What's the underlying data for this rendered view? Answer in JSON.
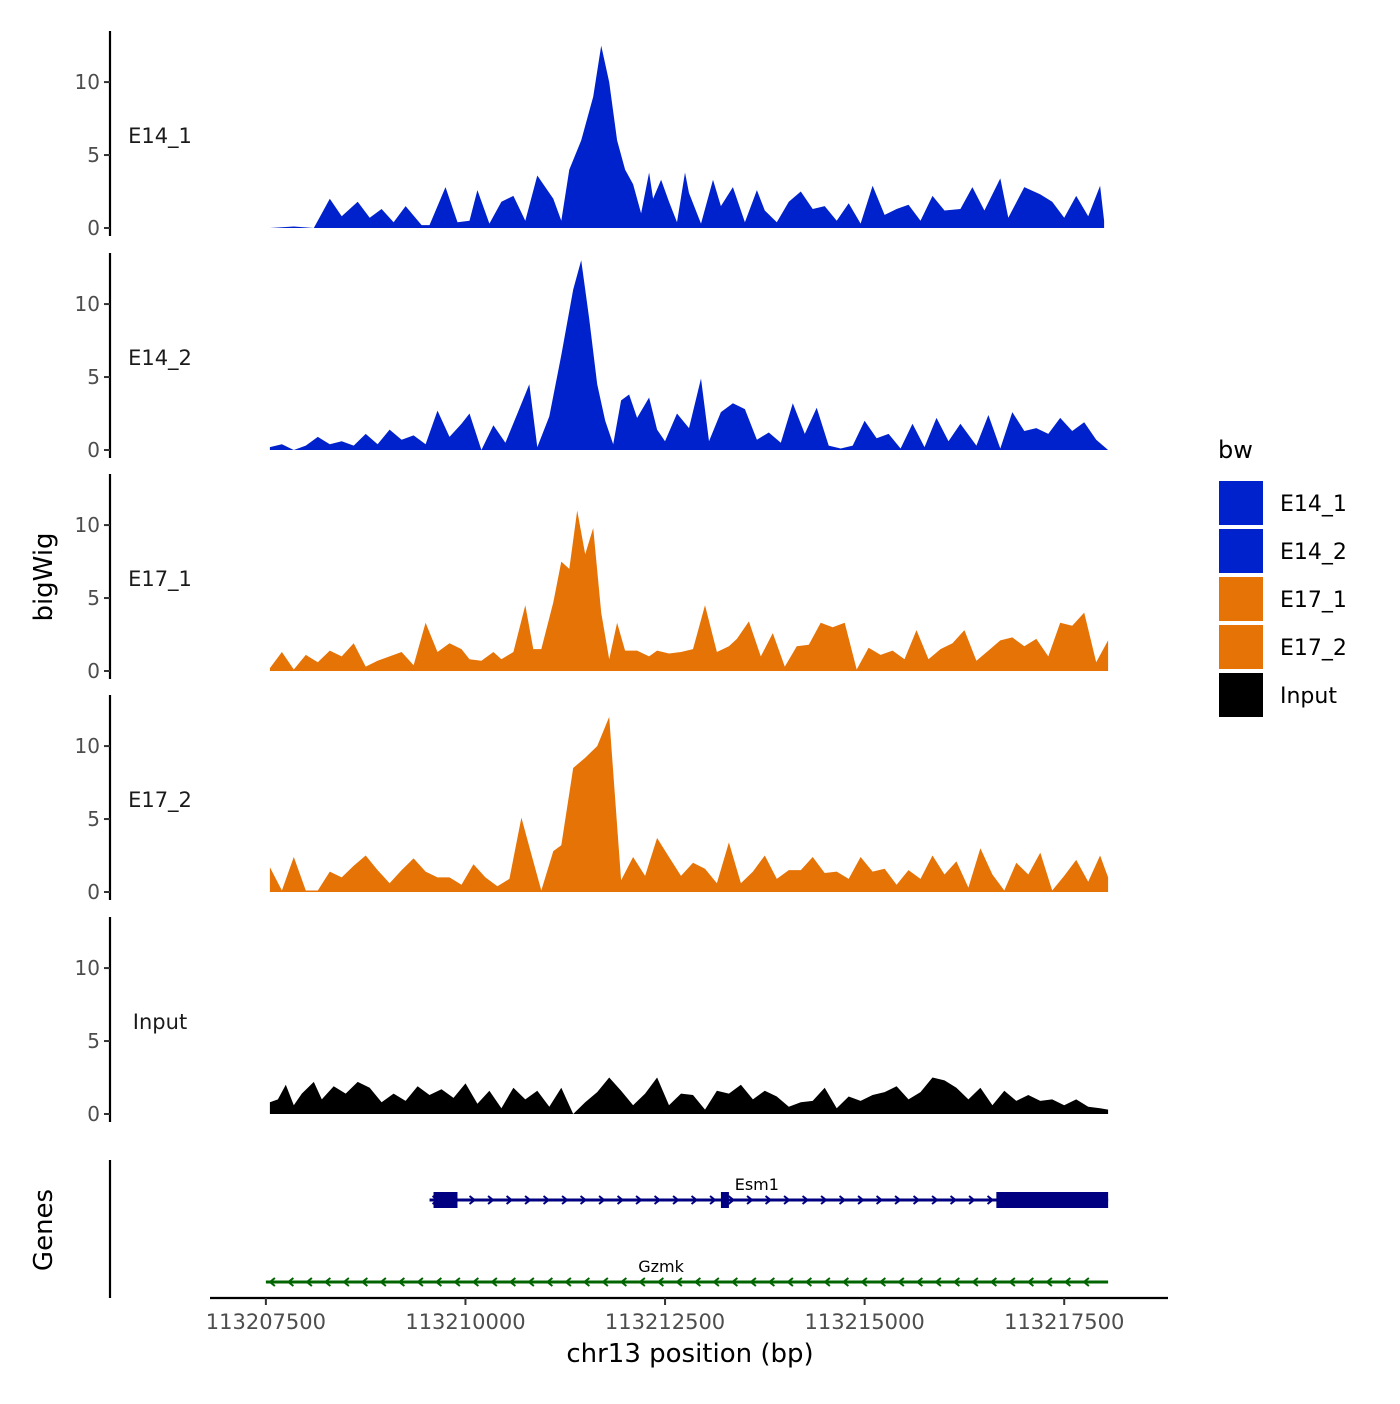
{
  "chart_data": {
    "type": "area",
    "title": "",
    "xlabel": "chr13 position (bp)",
    "ylabel": "bigWig",
    "gene_track_label": "Genes",
    "xlim": [
      113206800,
      113218800
    ],
    "ylim": [
      0,
      13.5
    ],
    "x_ticks": [
      113207500,
      113210000,
      113212500,
      113215000,
      113217500
    ],
    "x_tick_labels": [
      "113207500",
      "113210000",
      "113212500",
      "113215000",
      "113217500"
    ],
    "y_ticks": [
      0,
      5,
      10
    ],
    "y_tick_labels": [
      "0",
      "5",
      "10"
    ],
    "legend": {
      "title": "bw",
      "position": "right",
      "entries": [
        {
          "label": "E14_1",
          "color": "#0022CC"
        },
        {
          "label": "E14_2",
          "color": "#0022CC"
        },
        {
          "label": "E17_1",
          "color": "#E57306"
        },
        {
          "label": "E17_2",
          "color": "#E57306"
        },
        {
          "label": "Input",
          "color": "#000000"
        }
      ]
    },
    "series": [
      {
        "name": "E14_1",
        "color": "#0022CC",
        "x": [
          113207550,
          113207850,
          113208100,
          113208300,
          113208450,
          113208650,
          113208800,
          113208950,
          113209100,
          113209250,
          113209450,
          113209550,
          113209750,
          113209900,
          113210050,
          113210150,
          113210300,
          113210450,
          113210600,
          113210750,
          113210900,
          113211100,
          113211200,
          113211300,
          113211450,
          113211600,
          113211700,
          113211800,
          113211900,
          113212000,
          113212100,
          113212200,
          113212300,
          113212350,
          113212450,
          113212550,
          113212650,
          113212750,
          113212800,
          113212950,
          113213100,
          113213200,
          113213350,
          113213500,
          113213650,
          113213750,
          113213900,
          113214050,
          113214200,
          113214350,
          113214500,
          113214650,
          113214800,
          113214950,
          113215100,
          113215250,
          113215400,
          113215550,
          113215700,
          113215850,
          113216000,
          113216200,
          113216350,
          113216500,
          113216700,
          113216800,
          113217000,
          113217200,
          113217350,
          113217500,
          113217650,
          113217800,
          113217950,
          113218000
        ],
        "values": [
          0,
          0.1,
          0,
          2,
          0.8,
          1.8,
          0.7,
          1.3,
          0.4,
          1.5,
          0.2,
          0.2,
          2.8,
          0.4,
          0.5,
          2.6,
          0.3,
          1.8,
          2.2,
          0.5,
          3.6,
          2,
          0.5,
          4,
          6,
          9,
          12.5,
          10,
          6,
          4,
          3,
          1,
          3.8,
          2,
          3.3,
          1.8,
          0.4,
          3.8,
          2.4,
          0.3,
          3.3,
          1.5,
          2.8,
          0.4,
          2.6,
          1.2,
          0.4,
          1.8,
          2.5,
          1.3,
          1.5,
          0.5,
          1.7,
          0.3,
          2.9,
          0.9,
          1.3,
          1.6,
          0.5,
          2.2,
          1.2,
          1.3,
          2.8,
          1.2,
          3.4,
          0.7,
          2.8,
          2.3,
          1.8,
          0.7,
          2.2,
          0.8,
          2.9,
          0.5
        ]
      },
      {
        "name": "E14_2",
        "color": "#0022CC",
        "x": [
          113207550,
          113207700,
          113207850,
          113208000,
          113208150,
          113208300,
          113208450,
          113208600,
          113208750,
          113208900,
          113209050,
          113209200,
          113209350,
          113209500,
          113209650,
          113209800,
          113209950,
          113210050,
          113210200,
          113210350,
          113210500,
          113210650,
          113210800,
          113210900,
          113211050,
          113211200,
          113211350,
          113211450,
          113211550,
          113211650,
          113211750,
          113211850,
          113211950,
          113212050,
          113212150,
          113212300,
          113212400,
          113212500,
          113212650,
          113212800,
          113212950,
          113213050,
          113213200,
          113213350,
          113213500,
          113213650,
          113213800,
          113213950,
          113214100,
          113214250,
          113214400,
          113214550,
          113214700,
          113214850,
          113215000,
          113215150,
          113215300,
          113215450,
          113215600,
          113215750,
          113215900,
          113216050,
          113216200,
          113216400,
          113216550,
          113216700,
          113216850,
          113217000,
          113217150,
          113217300,
          113217450,
          113217600,
          113217750,
          113217900,
          113218050
        ],
        "values": [
          0.2,
          0.4,
          0,
          0.3,
          0.9,
          0.4,
          0.6,
          0.3,
          1.1,
          0.4,
          1.4,
          0.7,
          1,
          0.4,
          2.7,
          0.9,
          1.8,
          2.5,
          0,
          1.7,
          0.5,
          2.5,
          4.5,
          0.2,
          2.3,
          6.5,
          11,
          13,
          9,
          4.5,
          2,
          0.4,
          3.4,
          3.8,
          2.2,
          3.6,
          1.4,
          0.6,
          2.5,
          1.5,
          4.9,
          0.6,
          2.6,
          3.2,
          2.8,
          0.7,
          1.2,
          0.5,
          3.2,
          1.1,
          2.9,
          0.3,
          0.1,
          0.3,
          2,
          0.8,
          1.1,
          0.1,
          1.8,
          0.2,
          2.2,
          0.6,
          1.8,
          0.3,
          2.4,
          0.1,
          2.6,
          1.3,
          1.5,
          1.1,
          2.2,
          1.3,
          1.9,
          0.7,
          0
        ]
      },
      {
        "name": "E17_1",
        "color": "#E57306",
        "x": [
          113207550,
          113207700,
          113207850,
          113208000,
          113208150,
          113208300,
          113208450,
          113208600,
          113208750,
          113208900,
          113209050,
          113209200,
          113209350,
          113209500,
          113209650,
          113209800,
          113209950,
          113210050,
          113210200,
          113210350,
          113210450,
          113210600,
          113210750,
          113210850,
          113210950,
          113211100,
          113211200,
          113211300,
          113211400,
          113211500,
          113211600,
          113211700,
          113211800,
          113211900,
          113212000,
          113212150,
          113212300,
          113212400,
          113212550,
          113212700,
          113212850,
          113213000,
          113213150,
          113213300,
          113213400,
          113213550,
          113213700,
          113213850,
          113214000,
          113214150,
          113214300,
          113214450,
          113214600,
          113214750,
          113214900,
          113215050,
          113215200,
          113215350,
          113215500,
          113215650,
          113215800,
          113215950,
          113216100,
          113216250,
          113216400,
          113216550,
          113216700,
          113216850,
          113217000,
          113217150,
          113217300,
          113217450,
          113217600,
          113217750,
          113217900,
          113218050
        ],
        "values": [
          0.2,
          1.3,
          0.1,
          1.1,
          0.6,
          1.4,
          1,
          1.9,
          0.3,
          0.7,
          1,
          1.3,
          0.4,
          3.3,
          1.3,
          1.9,
          1.5,
          0.8,
          0.7,
          1.3,
          0.8,
          1.3,
          4.5,
          1.5,
          1.5,
          4.7,
          7.5,
          7,
          11,
          8,
          9.8,
          4,
          0.8,
          3.3,
          1.4,
          1.4,
          1,
          1.4,
          1.2,
          1.3,
          1.5,
          4.5,
          1.3,
          1.7,
          2.2,
          3.4,
          1,
          2.6,
          0.3,
          1.7,
          1.8,
          3.3,
          3,
          3.3,
          0.1,
          1.6,
          1.1,
          1.4,
          0.8,
          2.8,
          0.8,
          1.5,
          1.9,
          2.8,
          0.7,
          1.4,
          2.1,
          2.3,
          1.7,
          2.2,
          1,
          3.3,
          3.1,
          4,
          0.6,
          2.1
        ]
      },
      {
        "name": "E17_2",
        "color": "#E57306",
        "x": [
          113207550,
          113207700,
          113207850,
          113208000,
          113208150,
          113208300,
          113208450,
          113208600,
          113208750,
          113208900,
          113209050,
          113209200,
          113209350,
          113209500,
          113209650,
          113209800,
          113209950,
          113210100,
          113210250,
          113210400,
          113210550,
          113210700,
          113210800,
          113210950,
          113211100,
          113211200,
          113211350,
          113211500,
          113211650,
          113211800,
          113211950,
          113212100,
          113212250,
          113212400,
          113212550,
          113212700,
          113212850,
          113213000,
          113213150,
          113213300,
          113213450,
          113213600,
          113213750,
          113213900,
          113214050,
          113214200,
          113214350,
          113214500,
          113214650,
          113214800,
          113214950,
          113215100,
          113215250,
          113215400,
          113215550,
          113215700,
          113215850,
          113216000,
          113216150,
          113216300,
          113216450,
          113216600,
          113216750,
          113216900,
          113217050,
          113217200,
          113217350,
          113217500,
          113217650,
          113217800,
          113217950,
          113218050
        ],
        "values": [
          1.7,
          0.1,
          2.4,
          0.1,
          0.1,
          1.4,
          1,
          1.8,
          2.5,
          1.5,
          0.6,
          1.5,
          2.3,
          1.4,
          1,
          1,
          0.5,
          1.9,
          1,
          0.4,
          0.9,
          5.1,
          3.1,
          0.1,
          2.8,
          3.2,
          8.5,
          9.2,
          10,
          12,
          0.8,
          2.4,
          1.1,
          3.7,
          2.4,
          1.1,
          2,
          1.6,
          0.6,
          3.4,
          0.6,
          1.4,
          2.5,
          0.9,
          1.5,
          1.5,
          2.4,
          1.3,
          1.4,
          0.9,
          2.4,
          1.4,
          1.6,
          0.5,
          1.5,
          0.9,
          2.5,
          1.2,
          2.1,
          0.3,
          3,
          1.2,
          0.1,
          2,
          1.2,
          2.7,
          0.1,
          1.1,
          2.2,
          0.7,
          2.5,
          1
        ]
      },
      {
        "name": "Input",
        "color": "#000000",
        "x": [
          113207550,
          113207650,
          113207750,
          113207850,
          113207950,
          113208100,
          113208200,
          113208350,
          113208500,
          113208650,
          113208800,
          113208950,
          113209100,
          113209250,
          113209400,
          113209550,
          113209700,
          113209850,
          113210000,
          113210150,
          113210300,
          113210450,
          113210600,
          113210750,
          113210900,
          113211050,
          113211200,
          113211350,
          113211500,
          113211650,
          113211800,
          113211950,
          113212100,
          113212250,
          113212400,
          113212550,
          113212700,
          113212850,
          113213000,
          113213150,
          113213300,
          113213450,
          113213600,
          113213750,
          113213900,
          113214050,
          113214200,
          113214350,
          113214500,
          113214650,
          113214800,
          113214950,
          113215100,
          113215250,
          113215400,
          113215550,
          113215700,
          113215850,
          113216000,
          113216150,
          113216300,
          113216450,
          113216600,
          113216750,
          113216900,
          113217050,
          113217200,
          113217350,
          113217500,
          113217650,
          113217800,
          113217950,
          113218050
        ],
        "values": [
          0.8,
          1,
          2,
          0.6,
          1.4,
          2.2,
          1,
          1.9,
          1.4,
          2.2,
          1.8,
          0.8,
          1.4,
          0.9,
          1.9,
          1.3,
          1.7,
          1.1,
          2.1,
          0.7,
          1.6,
          0.4,
          1.8,
          1,
          1.6,
          0.5,
          1.8,
          0,
          0.8,
          1.5,
          2.5,
          1.6,
          0.6,
          1.4,
          2.5,
          0.6,
          1.4,
          1.3,
          0.3,
          1.6,
          1.4,
          2,
          1,
          1.6,
          1.2,
          0.5,
          0.8,
          0.9,
          1.8,
          0.4,
          1.2,
          0.9,
          1.3,
          1.5,
          1.9,
          1,
          1.5,
          2.5,
          2.3,
          1.8,
          1,
          1.8,
          0.6,
          1.6,
          0.9,
          1.3,
          0.9,
          1,
          0.6,
          1,
          0.5,
          0.4,
          0.3
        ]
      }
    ],
    "genes": [
      {
        "name": "Esm1",
        "strand": "+",
        "color": "#000080",
        "start": 113209550,
        "end": 113218050,
        "exons": [
          [
            113209600,
            113209900
          ],
          [
            113213200,
            113213300
          ],
          [
            113216650,
            113218050
          ]
        ]
      },
      {
        "name": "Gzmk",
        "strand": "-",
        "color": "#006400",
        "start": 113207500,
        "end": 113218050,
        "exons": []
      }
    ]
  }
}
